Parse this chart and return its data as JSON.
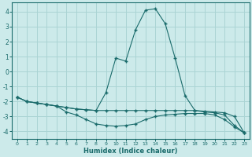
{
  "xlabel": "Humidex (Indice chaleur)",
  "background_color": "#cceaea",
  "grid_color": "#aad4d4",
  "line_color": "#1a6b6b",
  "xlim": [
    -0.5,
    23.5
  ],
  "ylim": [
    -4.5,
    4.6
  ],
  "yticks": [
    -4,
    -3,
    -2,
    -1,
    0,
    1,
    2,
    3,
    4
  ],
  "xticks": [
    0,
    1,
    2,
    3,
    4,
    5,
    6,
    7,
    8,
    9,
    10,
    11,
    12,
    13,
    14,
    15,
    16,
    17,
    18,
    19,
    20,
    21,
    22,
    23
  ],
  "series": [
    {
      "x": [
        0,
        1,
        2,
        3,
        4,
        5,
        6,
        7,
        8,
        9,
        10,
        11,
        12,
        13,
        14,
        15,
        16,
        17,
        18,
        19,
        20,
        21,
        22,
        23
      ],
      "y": [
        -1.7,
        -2.0,
        -2.1,
        -2.2,
        -2.3,
        -2.4,
        -2.5,
        -2.55,
        -2.6,
        -1.4,
        0.9,
        0.7,
        2.8,
        4.1,
        4.2,
        3.2,
        0.9,
        -1.6,
        -2.6,
        -2.7,
        -2.75,
        -2.9,
        -3.6,
        -4.1
      ]
    },
    {
      "x": [
        0,
        1,
        2,
        3,
        4,
        5,
        6,
        7,
        8,
        9,
        10,
        11,
        12,
        13,
        14,
        15,
        16,
        17,
        18,
        19,
        20,
        21,
        22,
        23
      ],
      "y": [
        -1.7,
        -2.0,
        -2.1,
        -2.2,
        -2.3,
        -2.4,
        -2.5,
        -2.55,
        -2.6,
        -2.6,
        -2.6,
        -2.6,
        -2.6,
        -2.6,
        -2.6,
        -2.6,
        -2.6,
        -2.6,
        -2.6,
        -2.65,
        -2.7,
        -2.75,
        -3.0,
        -4.1
      ]
    },
    {
      "x": [
        0,
        1,
        2,
        3,
        4,
        5,
        6,
        7,
        8,
        9,
        10,
        11,
        12,
        13,
        14,
        15,
        16,
        17,
        18,
        19,
        20,
        21,
        22,
        23
      ],
      "y": [
        -1.7,
        -2.0,
        -2.1,
        -2.2,
        -2.3,
        -2.7,
        -2.9,
        -3.2,
        -3.5,
        -3.6,
        -3.65,
        -3.6,
        -3.5,
        -3.2,
        -3.0,
        -2.9,
        -2.85,
        -2.8,
        -2.8,
        -2.8,
        -2.9,
        -3.2,
        -3.7,
        -4.1
      ]
    }
  ]
}
